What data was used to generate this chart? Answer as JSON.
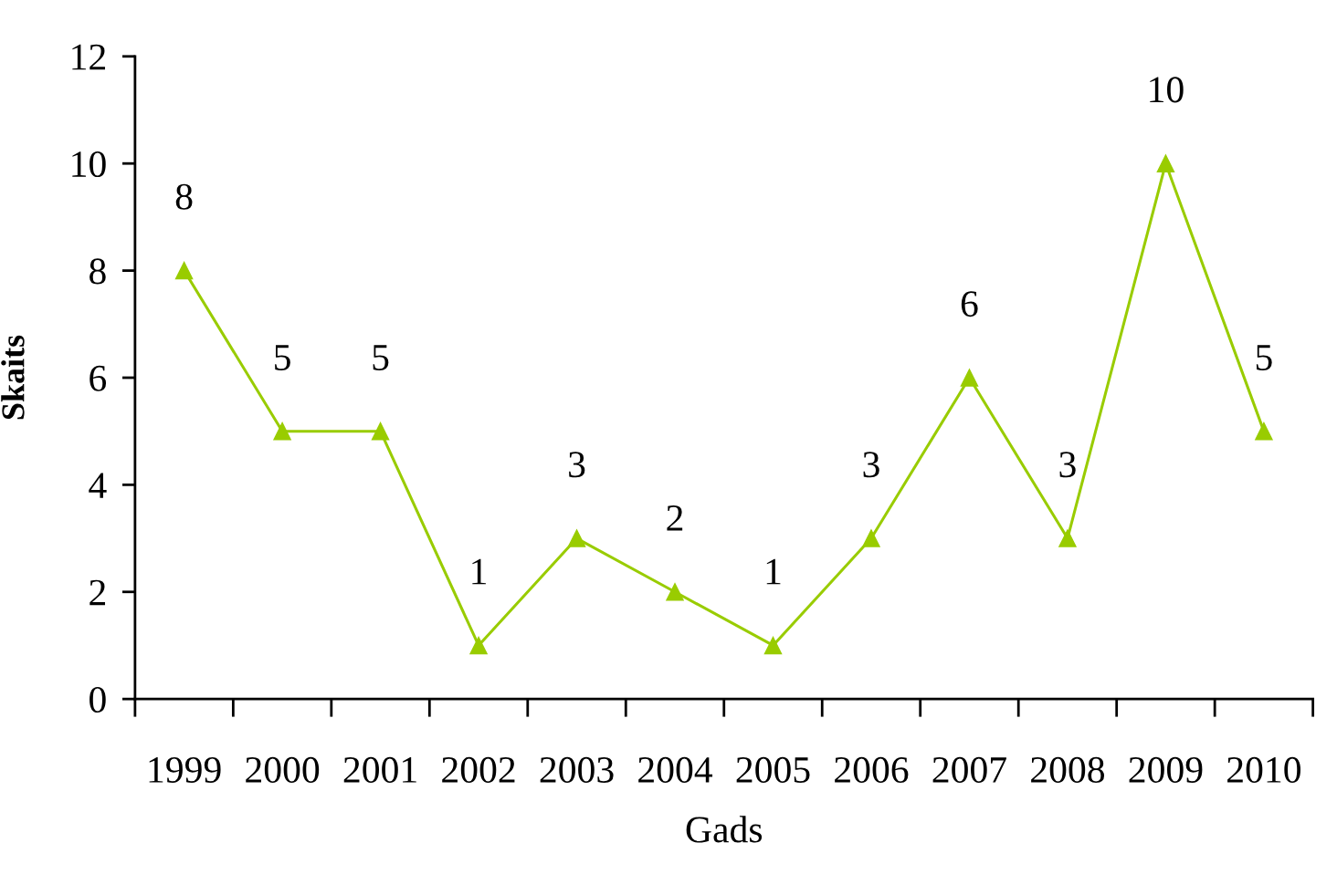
{
  "chart_data": {
    "type": "line",
    "xlabel": "Gads",
    "ylabel": "Skaits",
    "categories": [
      "1999",
      "2000",
      "2001",
      "2002",
      "2003",
      "2004",
      "2005",
      "2006",
      "2007",
      "2008",
      "2009",
      "2010"
    ],
    "series": [
      {
        "color": "#99cc00",
        "values": [
          8,
          5,
          5,
          1,
          3,
          2,
          1,
          3,
          6,
          3,
          10,
          5
        ]
      }
    ],
    "ylim": [
      0,
      12
    ],
    "yticks": [
      0,
      2,
      4,
      6,
      8,
      10,
      12
    ],
    "marker": "triangle",
    "line_style": "solid",
    "data_labels": true,
    "grid": false,
    "legend": false
  }
}
